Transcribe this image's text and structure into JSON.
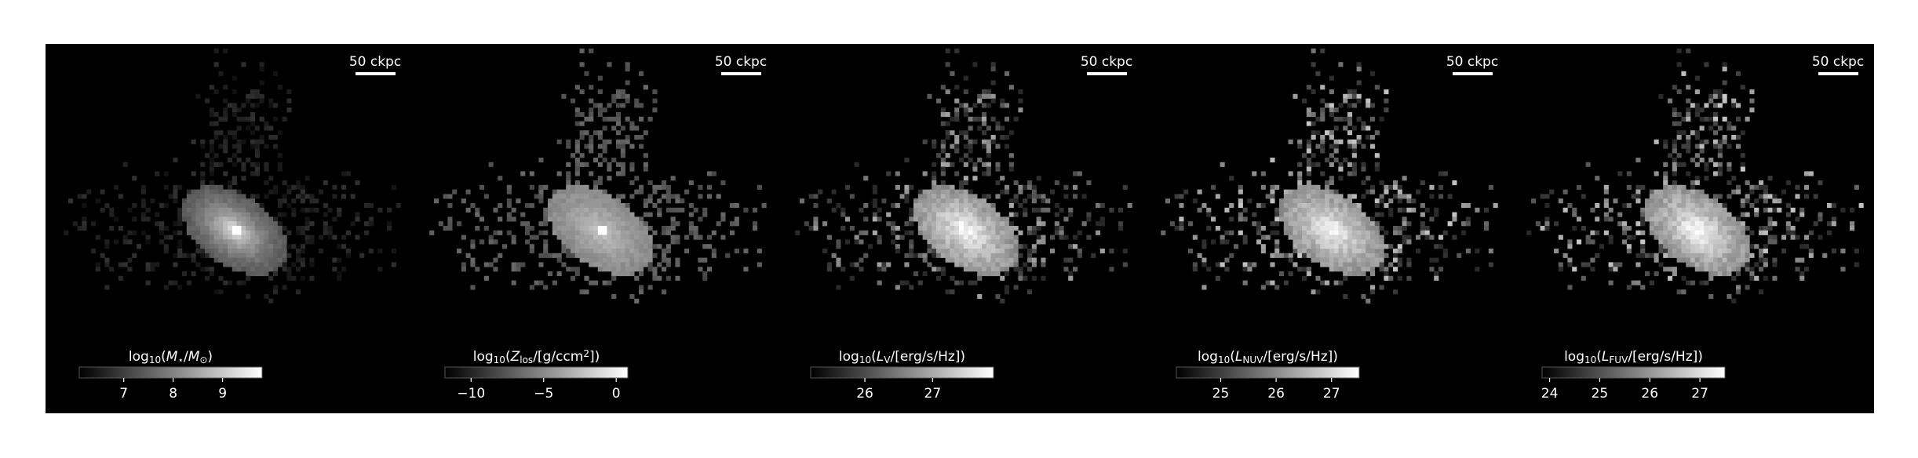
{
  "chart_data": [
    {
      "type": "image-map",
      "scale_bar": "50 ckpc",
      "label": [
        {
          "text": "log"
        },
        {
          "text": "10",
          "style": "sub"
        },
        {
          "text": "("
        },
        {
          "text": "M",
          "style": "italic"
        },
        {
          "text": "⋆",
          "style": "sub"
        },
        {
          "text": "/"
        },
        {
          "text": "M",
          "style": "italic"
        },
        {
          "text": "⊙",
          "style": "sub"
        },
        {
          "text": ")"
        }
      ],
      "clim": [
        6.1,
        9.8
      ],
      "ticks": [
        7,
        8,
        9
      ]
    },
    {
      "type": "image-map",
      "scale_bar": "50 ckpc",
      "label": [
        {
          "text": "log"
        },
        {
          "text": "10",
          "style": "sub"
        },
        {
          "text": "("
        },
        {
          "text": "Z",
          "style": "italic"
        },
        {
          "text": "los",
          "style": "sub"
        },
        {
          "text": "/[g/ccm"
        },
        {
          "text": "2",
          "style": "sup"
        },
        {
          "text": "])"
        }
      ],
      "clim": [
        -11.8,
        0.8
      ],
      "ticks": [
        {
          "value": -10,
          "label": "−10"
        },
        {
          "value": -5,
          "label": "−5"
        },
        0
      ]
    },
    {
      "type": "image-map",
      "scale_bar": "50 ckpc",
      "label": [
        {
          "text": "log"
        },
        {
          "text": "10",
          "style": "sub"
        },
        {
          "text": "("
        },
        {
          "text": "L",
          "style": "italic"
        },
        {
          "text": "V",
          "style": "sub"
        },
        {
          "text": "/[erg/s/Hz])"
        }
      ],
      "clim": [
        25.2,
        27.9
      ],
      "ticks": [
        26,
        27
      ]
    },
    {
      "type": "image-map",
      "scale_bar": "50 ckpc",
      "label": [
        {
          "text": "log"
        },
        {
          "text": "10",
          "style": "sub"
        },
        {
          "text": "("
        },
        {
          "text": "L",
          "style": "italic"
        },
        {
          "text": "NUV",
          "style": "sub"
        },
        {
          "text": "/[erg/s/Hz])"
        }
      ],
      "clim": [
        24.2,
        27.5
      ],
      "ticks": [
        25,
        26,
        27
      ]
    },
    {
      "type": "image-map",
      "scale_bar": "50 ckpc",
      "label": [
        {
          "text": "log"
        },
        {
          "text": "10",
          "style": "sub"
        },
        {
          "text": "("
        },
        {
          "text": "L",
          "style": "italic"
        },
        {
          "text": "FUV",
          "style": "sub"
        },
        {
          "text": "/[erg/s/Hz])"
        }
      ],
      "clim": [
        23.85,
        27.5
      ],
      "ticks": [
        24,
        25,
        26,
        27
      ]
    }
  ]
}
